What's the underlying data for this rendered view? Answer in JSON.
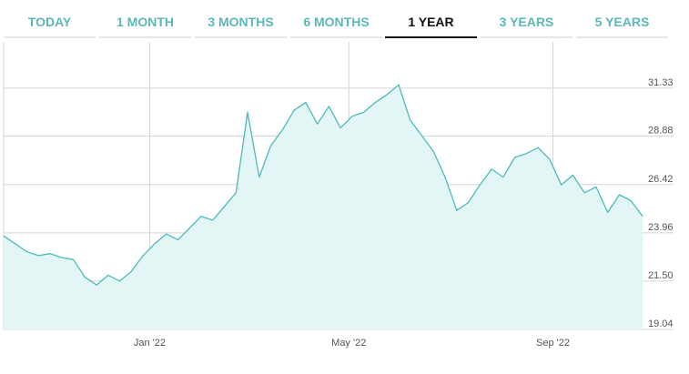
{
  "tabs": [
    {
      "label": "TODAY",
      "active": false
    },
    {
      "label": "1 MONTH",
      "active": false
    },
    {
      "label": "3 MONTHS",
      "active": false
    },
    {
      "label": "6 MONTHS",
      "active": false
    },
    {
      "label": "1 YEAR",
      "active": true
    },
    {
      "label": "3 YEARS",
      "active": false
    },
    {
      "label": "5 YEARS",
      "active": false
    }
  ],
  "colors": {
    "accent": "#5cb8b8",
    "line": "#4fb9b9",
    "fill": "#e3f6f6",
    "active_tab": "#111111",
    "tab_underline": "#e6e6e6",
    "grid": "#d5d5d5"
  },
  "chart_data": {
    "type": "area",
    "grid": true,
    "ylim": [
      19.04,
      33.5
    ],
    "y_ticks": [
      "31.33",
      "28.88",
      "26.42",
      "23.96",
      "21.50",
      "19.04"
    ],
    "x_ticks": [
      "Jan '22",
      "May '22",
      "Sep '22"
    ],
    "x": [
      "2021-10-05",
      "2021-10-12",
      "2021-10-19",
      "2021-10-26",
      "2021-11-02",
      "2021-11-09",
      "2021-11-16",
      "2021-11-23",
      "2021-11-30",
      "2021-12-07",
      "2021-12-14",
      "2021-12-21",
      "2021-12-28",
      "2022-01-04",
      "2022-01-11",
      "2022-01-18",
      "2022-01-25",
      "2022-02-01",
      "2022-02-08",
      "2022-02-15",
      "2022-02-22",
      "2022-03-01",
      "2022-03-08",
      "2022-03-15",
      "2022-03-22",
      "2022-03-29",
      "2022-04-05",
      "2022-04-12",
      "2022-04-19",
      "2022-04-26",
      "2022-05-03",
      "2022-05-10",
      "2022-05-17",
      "2022-05-24",
      "2022-05-31",
      "2022-06-07",
      "2022-06-14",
      "2022-06-21",
      "2022-06-28",
      "2022-07-05",
      "2022-07-12",
      "2022-07-19",
      "2022-07-26",
      "2022-08-02",
      "2022-08-09",
      "2022-08-16",
      "2022-08-23",
      "2022-08-30",
      "2022-09-06",
      "2022-09-13",
      "2022-09-20",
      "2022-09-27",
      "2022-10-04",
      "2022-10-11",
      "2022-10-18",
      "2022-10-25"
    ],
    "values": [
      23.8,
      23.4,
      23.0,
      22.8,
      22.9,
      22.7,
      22.6,
      21.7,
      21.3,
      21.8,
      21.5,
      22.0,
      22.8,
      23.4,
      23.9,
      23.6,
      24.2,
      24.8,
      24.6,
      25.3,
      26.0,
      30.1,
      26.8,
      28.4,
      29.2,
      30.2,
      30.6,
      29.5,
      30.4,
      29.3,
      29.9,
      30.1,
      30.6,
      31.0,
      31.5,
      29.7,
      28.9,
      28.1,
      26.8,
      25.1,
      25.5,
      26.4,
      27.2,
      26.8,
      27.8,
      28.0,
      28.3,
      27.7,
      26.4,
      26.9,
      26.0,
      26.3,
      25.0,
      25.9,
      25.6,
      24.8
    ]
  }
}
